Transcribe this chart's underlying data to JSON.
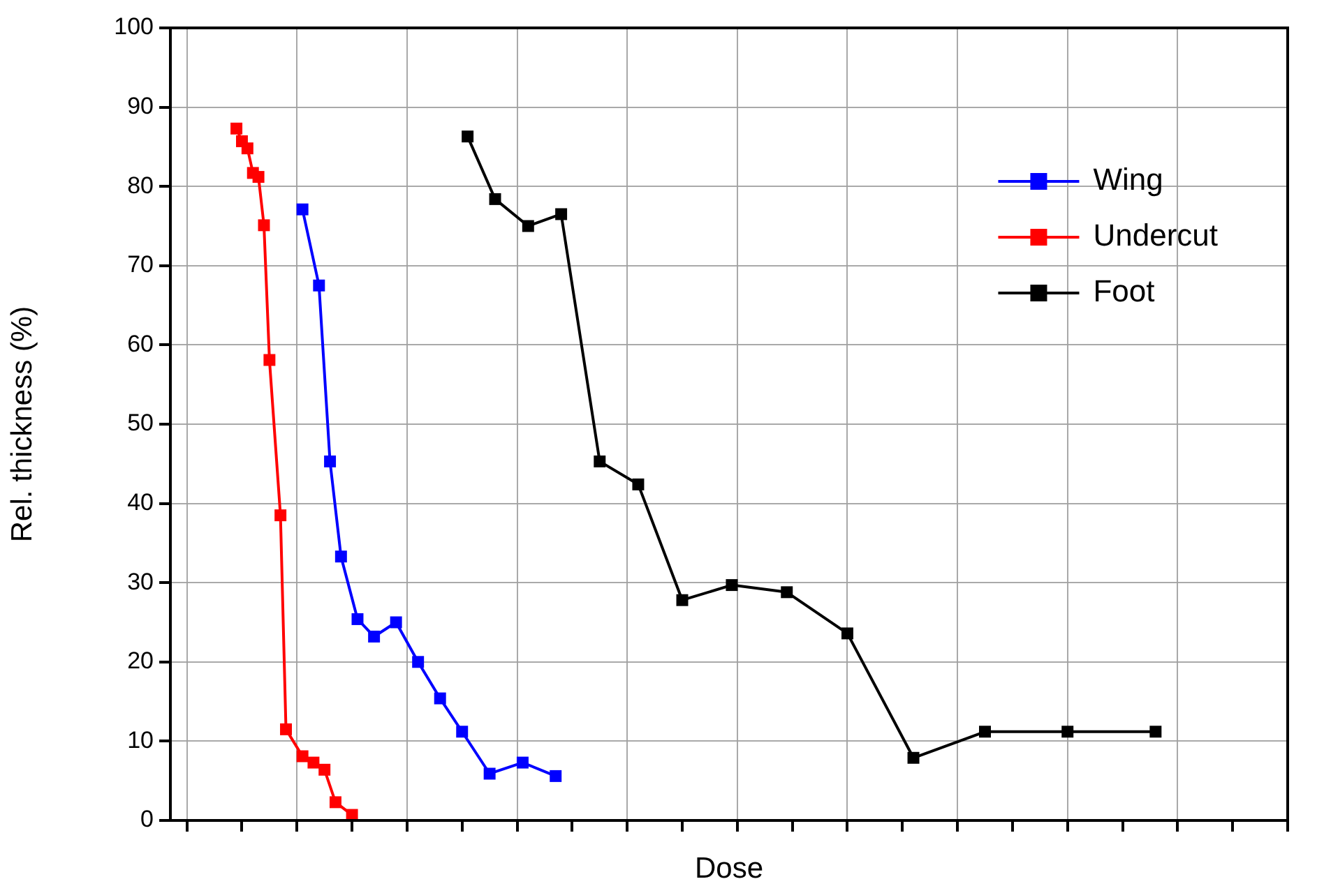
{
  "chart_data": {
    "type": "line",
    "xlabel": "Dose",
    "ylabel": "Rel. thickness (%)",
    "categories": [
      null,
      null,
      null,
      null,
      null,
      null,
      null,
      null,
      null,
      null,
      null,
      null,
      null,
      null,
      null,
      null,
      null,
      null,
      null,
      null,
      null,
      null,
      null,
      null,
      null,
      null,
      null,
      null,
      null,
      null,
      null,
      null,
      null,
      null,
      null,
      null,
      null,
      null,
      null,
      null,
      null,
      null,
      null,
      null,
      null,
      null,
      null,
      null,
      null,
      null,
      null,
      null,
      null,
      null,
      null,
      null,
      null,
      null,
      null,
      null,
      null,
      null,
      null,
      null,
      null,
      null,
      null,
      null,
      null,
      null,
      null,
      null,
      null,
      null,
      null,
      null,
      null,
      null,
      null,
      null,
      null,
      null,
      null,
      null,
      null,
      null,
      null,
      null,
      null,
      null,
      null,
      null,
      null,
      null,
      null,
      null,
      null,
      null,
      null,
      null,
      null,
      null,
      null,
      null,
      null,
      null,
      null,
      null,
      null,
      null,
      null,
      null,
      null,
      null,
      null,
      null,
      null,
      null,
      null,
      null,
      null,
      null,
      null,
      null,
      null,
      null,
      null,
      null,
      null,
      null,
      null,
      null,
      null,
      null,
      null,
      null,
      null,
      null,
      null,
      null,
      null,
      null,
      null,
      null,
      null,
      null,
      null,
      null,
      null,
      null,
      null,
      null,
      null,
      null,
      null,
      null,
      null,
      null,
      null,
      null,
      null,
      null,
      null,
      null,
      null,
      null,
      null,
      null,
      null,
      null,
      null,
      null,
      null,
      null,
      null,
      null,
      null,
      null,
      null,
      null,
      null,
      null,
      null,
      null,
      null,
      null,
      null,
      null,
      null,
      null,
      null,
      null,
      null,
      null,
      null,
      null,
      null,
      null,
      null,
      null,
      null,
      null,
      null,
      null
    ],
    "series": [
      {
        "name": "Wing",
        "color": "#0000ff",
        "values": [
          null,
          null,
          null,
          null,
          null,
          null,
          null,
          null,
          null,
          null,
          null,
          null,
          null,
          null,
          null,
          null,
          null,
          null,
          null,
          null,
          null,
          null,
          null,
          null,
          77.1,
          null,
          null,
          67.5,
          null,
          45.3,
          null,
          33.3,
          null,
          null,
          25.4,
          null,
          null,
          23.2,
          null,
          null,
          null,
          25.0,
          null,
          null,
          null,
          20.0,
          null,
          null,
          null,
          15.4,
          null,
          null,
          null,
          11.2,
          null,
          null,
          null,
          null,
          5.9,
          null,
          null,
          null,
          null,
          null,
          7.3,
          null,
          null,
          null,
          null,
          null,
          5.6,
          null,
          null,
          null,
          null,
          null,
          null,
          null,
          null,
          null,
          null,
          null,
          null,
          null,
          null,
          null,
          null,
          null,
          null,
          null,
          null,
          null,
          null,
          null,
          null,
          null,
          null,
          null,
          null,
          null,
          null,
          null,
          null,
          null,
          null,
          null,
          null,
          null,
          null,
          null,
          null,
          null,
          null,
          null,
          null,
          null,
          null,
          null,
          null,
          null,
          null,
          null,
          null,
          null,
          null,
          null,
          null,
          null,
          null,
          null,
          null,
          null,
          null,
          null,
          null,
          null,
          null,
          null,
          null,
          null,
          null,
          null,
          null,
          null,
          null,
          null,
          null,
          null,
          null,
          null,
          null,
          null,
          null,
          null,
          null,
          null,
          null,
          null,
          null,
          null,
          null,
          null,
          null,
          null,
          null,
          null,
          null,
          null,
          null,
          null,
          null,
          null,
          null,
          null,
          null,
          null,
          null,
          null,
          null,
          null,
          null,
          null,
          null,
          null,
          null,
          null,
          null,
          null,
          null,
          null,
          null,
          null,
          null,
          null,
          null,
          null,
          null,
          null,
          null,
          null,
          null,
          null,
          null,
          null
        ]
      },
      {
        "name": "Undercut",
        "color": "#ff0000",
        "values": [
          null,
          null,
          null,
          null,
          null,
          null,
          null,
          null,
          null,
          null,
          null,
          null,
          87.3,
          85.7,
          84.8,
          81.7,
          81.2,
          75.1,
          58.1,
          null,
          38.5,
          11.5,
          null,
          null,
          8.1,
          null,
          7.3,
          null,
          6.4,
          null,
          2.3,
          null,
          null,
          0.7,
          null,
          null,
          null,
          null,
          null,
          null,
          null,
          null,
          null,
          null,
          null,
          null,
          null,
          null,
          null,
          null,
          null,
          null,
          null,
          null,
          null,
          null,
          null,
          null,
          null,
          null,
          null,
          null,
          null,
          null,
          null,
          null,
          null,
          null,
          null,
          null,
          null,
          null,
          null,
          null,
          null,
          null,
          null,
          null,
          null,
          null,
          null,
          null,
          null,
          null,
          null,
          null,
          null,
          null,
          null,
          null,
          null,
          null,
          null,
          null,
          null,
          null,
          null,
          null,
          null,
          null,
          null,
          null,
          null,
          null,
          null,
          null,
          null,
          null,
          null,
          null,
          null,
          null,
          null,
          null,
          null,
          null,
          null,
          null,
          null,
          null,
          null,
          null,
          null,
          null,
          null,
          null,
          null,
          null,
          null,
          null,
          null,
          null,
          null,
          null,
          null,
          null,
          null,
          null,
          null,
          null,
          null,
          null,
          null,
          null,
          null,
          null,
          null,
          null,
          null,
          null,
          null,
          null,
          null,
          null,
          null,
          null,
          null,
          null,
          null,
          null,
          null,
          null,
          null,
          null,
          null,
          null,
          null,
          null,
          null,
          null,
          null,
          null,
          null,
          null,
          null,
          null,
          null,
          null,
          null,
          null,
          null,
          null,
          null,
          null,
          null,
          null,
          null,
          null,
          null,
          null,
          null,
          null,
          null,
          null,
          null,
          null,
          null,
          null,
          null,
          null,
          null,
          null,
          null,
          null
        ]
      },
      {
        "name": "Foot",
        "color": "#000000",
        "values": [
          null,
          null,
          null,
          null,
          null,
          null,
          null,
          null,
          null,
          null,
          null,
          null,
          null,
          null,
          null,
          null,
          null,
          null,
          null,
          null,
          null,
          null,
          null,
          null,
          null,
          null,
          null,
          null,
          null,
          null,
          null,
          null,
          null,
          null,
          null,
          null,
          null,
          null,
          null,
          null,
          null,
          null,
          null,
          null,
          null,
          null,
          null,
          null,
          null,
          null,
          null,
          null,
          null,
          null,
          86.3,
          null,
          null,
          null,
          null,
          78.4,
          null,
          null,
          null,
          null,
          null,
          75.0,
          null,
          null,
          null,
          null,
          null,
          76.5,
          null,
          null,
          null,
          null,
          null,
          null,
          45.3,
          null,
          null,
          null,
          null,
          null,
          null,
          42.4,
          null,
          null,
          null,
          null,
          null,
          null,
          null,
          27.8,
          null,
          null,
          null,
          null,
          null,
          null,
          null,
          null,
          29.7,
          null,
          null,
          null,
          null,
          null,
          null,
          null,
          null,
          null,
          28.8,
          null,
          null,
          null,
          null,
          null,
          null,
          null,
          null,
          null,
          null,
          23.6,
          null,
          null,
          null,
          null,
          null,
          null,
          null,
          null,
          null,
          null,
          null,
          7.9,
          null,
          null,
          null,
          null,
          null,
          null,
          null,
          null,
          null,
          null,
          null,
          null,
          11.2,
          null,
          null,
          null,
          null,
          null,
          null,
          null,
          null,
          null,
          null,
          null,
          null,
          null,
          null,
          11.2,
          null,
          null,
          null,
          null,
          null,
          null,
          null,
          null,
          null,
          null,
          null,
          null,
          null,
          null,
          null,
          11.2,
          null,
          null,
          null,
          null,
          null,
          null,
          null,
          null,
          null,
          null,
          null,
          null,
          null,
          null,
          null,
          null,
          null,
          null,
          null,
          null,
          null,
          null,
          null,
          null
        ]
      }
    ],
    "ylim": [
      0,
      100
    ],
    "yticks": [
      0,
      10,
      20,
      30,
      40,
      50,
      60,
      70,
      80,
      90,
      100
    ],
    "grid": true,
    "legend": "top right",
    "marker": "square"
  }
}
